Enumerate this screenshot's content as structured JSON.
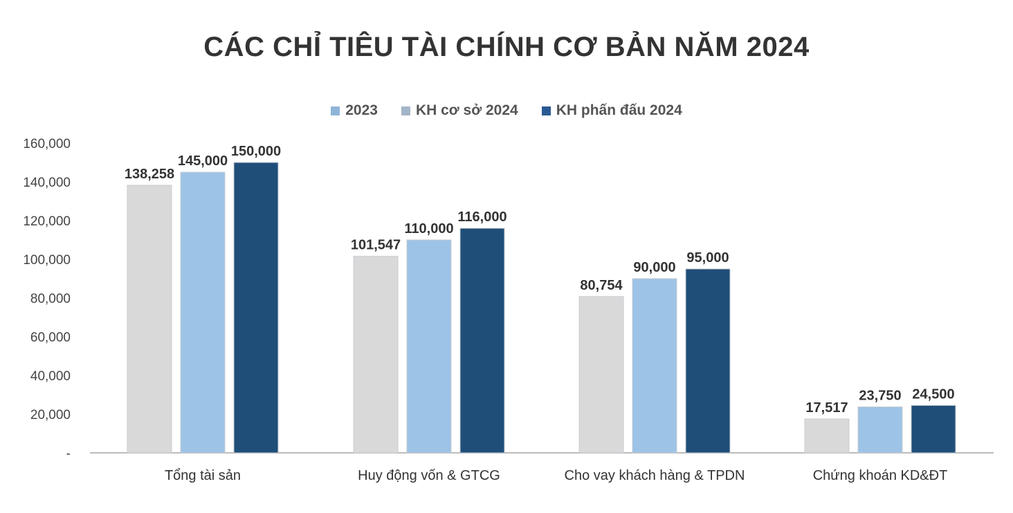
{
  "chart_data": {
    "type": "bar",
    "title": "CÁC CHỈ TIÊU TÀI CHÍNH CƠ BẢN NĂM 2024",
    "categories": [
      "Tổng tài sản",
      "Huy động vốn & GTCG",
      "Cho vay khách hàng & TPDN",
      "Chứng khoán KD&ĐT"
    ],
    "series": [
      {
        "name": "2023",
        "values": [
          138258,
          101547,
          80754,
          17517
        ],
        "color": "#d9d9d9",
        "legend_color": "#8fb4d8"
      },
      {
        "name": "KH cơ sở 2024",
        "values": [
          145000,
          110000,
          90000,
          23750
        ],
        "color": "#9dc3e6",
        "legend_color": "#a3b5c8"
      },
      {
        "name": "KH phấn đấu 2024",
        "values": [
          150000,
          116000,
          95000,
          24500
        ],
        "color": "#1f4e79",
        "legend_color": "#2a5a94"
      }
    ],
    "data_labels": [
      [
        "138,258",
        "101,547",
        "80,754",
        "17,517"
      ],
      [
        "145,000",
        "110,000",
        "90,000",
        "23,750"
      ],
      [
        "150,000",
        "116,000",
        "95,000",
        "24,500"
      ]
    ],
    "yticks": [
      0,
      20000,
      40000,
      60000,
      80000,
      100000,
      120000,
      140000,
      160000
    ],
    "ytick_labels": [
      "-",
      "20,000",
      "40,000",
      "60,000",
      "80,000",
      "100,000",
      "120,000",
      "140,000",
      "160,000"
    ],
    "ylim": [
      0,
      160000
    ],
    "xlabel": "",
    "ylabel": "",
    "grid": false,
    "legend_position": "top"
  }
}
